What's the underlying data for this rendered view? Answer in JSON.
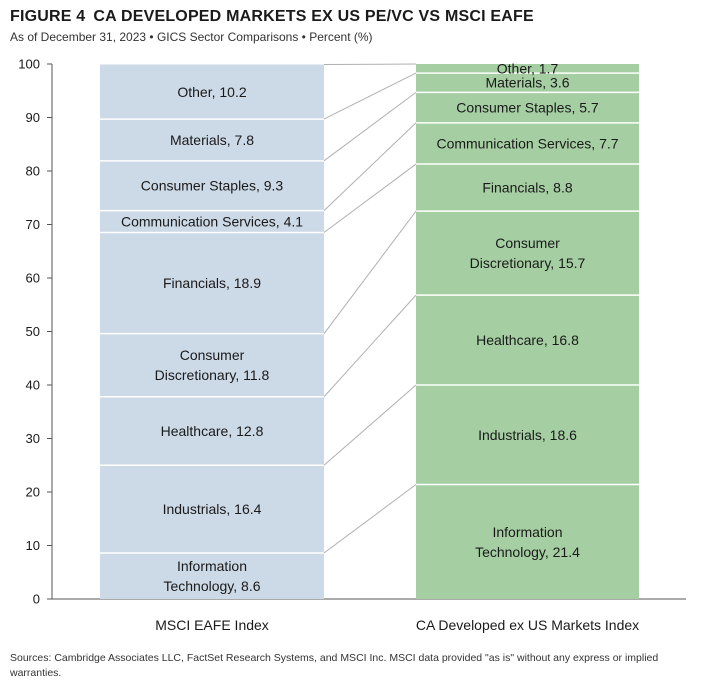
{
  "title": {
    "figure": "FIGURE 4",
    "text": "CA DEVELOPED MARKETS EX US PE/VC VS MSCI EAFE"
  },
  "subtitle": "As of December 31, 2023 • GICS Sector Comparisons • Percent (%)",
  "source": "Sources: Cambridge Associates LLC, FactSet Research Systems, and MSCI Inc. MSCI data provided \"as is\" without any express or implied warranties.",
  "colors": {
    "msci": "#ccd9e6",
    "ca": "#a5cfa2",
    "connector": "#b0b0b0",
    "axis": "#555555"
  },
  "chart_data": {
    "type": "bar",
    "stacked": true,
    "ylim": [
      0,
      100
    ],
    "yticks": [
      0,
      10,
      20,
      30,
      40,
      50,
      60,
      70,
      80,
      90,
      100
    ],
    "xlabel": "",
    "ylabel": "",
    "grid": false,
    "categories": [
      "MSCI EAFE Index",
      "CA Developed ex US Markets Index"
    ],
    "series": [
      {
        "category": "MSCI EAFE Index",
        "segments": [
          {
            "lines": [
              "Information",
              "Technology, 8.6"
            ],
            "value": 8.6
          },
          {
            "lines": [
              "Industrials, 16.4"
            ],
            "value": 16.4
          },
          {
            "lines": [
              "Healthcare, 12.8"
            ],
            "value": 12.8
          },
          {
            "lines": [
              "Consumer",
              "Discretionary, 11.8"
            ],
            "value": 11.8
          },
          {
            "lines": [
              "Financials, 18.9"
            ],
            "value": 18.9
          },
          {
            "lines": [
              "Communication Services, 4.1"
            ],
            "value": 4.1
          },
          {
            "lines": [
              "Consumer Staples, 9.3"
            ],
            "value": 9.3
          },
          {
            "lines": [
              "Materials, 7.8"
            ],
            "value": 7.8
          },
          {
            "lines": [
              "Other, 10.2"
            ],
            "value": 10.2
          }
        ]
      },
      {
        "category": "CA Developed ex US Markets Index",
        "segments": [
          {
            "lines": [
              "Information",
              "Technology, 21.4"
            ],
            "value": 21.4
          },
          {
            "lines": [
              "Industrials, 18.6"
            ],
            "value": 18.6
          },
          {
            "lines": [
              "Healthcare, 16.8"
            ],
            "value": 16.8
          },
          {
            "lines": [
              "Consumer",
              "Discretionary, 15.7"
            ],
            "value": 15.7
          },
          {
            "lines": [
              "Financials, 8.8"
            ],
            "value": 8.8
          },
          {
            "lines": [
              "Communication Services, 7.7"
            ],
            "value": 7.7
          },
          {
            "lines": [
              "Consumer Staples, 5.7"
            ],
            "value": 5.7
          },
          {
            "lines": [
              "Materials, 3.6"
            ],
            "value": 3.6
          },
          {
            "lines": [
              "Other, 1.7"
            ],
            "value": 1.7
          }
        ]
      }
    ]
  }
}
